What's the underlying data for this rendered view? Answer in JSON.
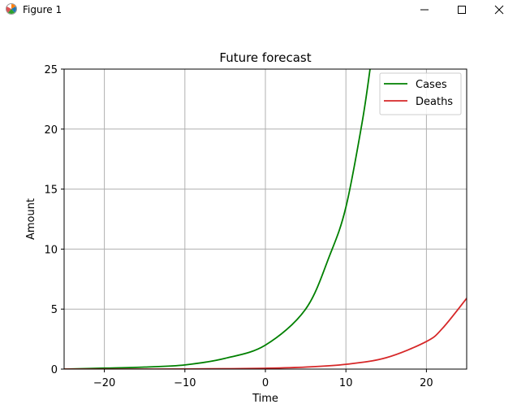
{
  "window": {
    "title": "Figure 1",
    "icons": {
      "app": "matplotlib-figure-icon",
      "minimize": "minimize-icon",
      "maximize": "maximize-icon",
      "close": "close-icon"
    }
  },
  "chart_data": {
    "type": "line",
    "title": "Future forecast",
    "xlabel": "Time",
    "ylabel": "Amount",
    "xlim": [
      -25,
      25
    ],
    "ylim": [
      0,
      25
    ],
    "xticks": [
      -20,
      -10,
      0,
      10,
      20
    ],
    "xtick_labels": [
      "−20",
      "−10",
      "0",
      "10",
      "20"
    ],
    "yticks": [
      0,
      5,
      10,
      15,
      20,
      25
    ],
    "ytick_labels": [
      "0",
      "5",
      "10",
      "15",
      "20",
      "25"
    ],
    "grid": true,
    "legend": "top-right",
    "series": [
      {
        "name": "Cases",
        "color": "#008000",
        "x": [
          -25,
          -20,
          -15,
          -10,
          -5,
          0,
          5,
          8,
          10,
          12,
          13
        ],
        "y": [
          0.0,
          0.08,
          0.17,
          0.35,
          0.9,
          2.0,
          5.0,
          9.5,
          13.5,
          20.5,
          25.0
        ]
      },
      {
        "name": "Deaths",
        "color": "#d62728",
        "x": [
          -25,
          -20,
          -15,
          -10,
          -5,
          0,
          5,
          10,
          15,
          20,
          22,
          25
        ],
        "y": [
          0.0,
          0.0,
          0.0,
          0.01,
          0.03,
          0.07,
          0.17,
          0.4,
          0.95,
          2.3,
          3.4,
          5.9
        ]
      }
    ]
  }
}
